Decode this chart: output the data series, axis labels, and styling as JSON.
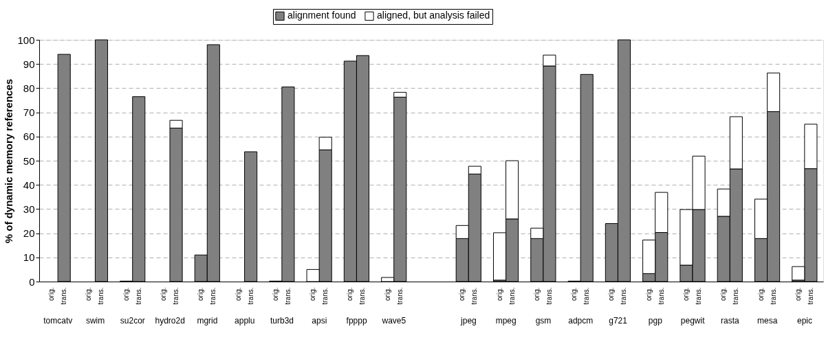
{
  "chart_data": {
    "type": "bar",
    "stacked": true,
    "ylabel": "% of dynamic memory references",
    "categories": [
      "orig.",
      "trans.",
      null,
      "orig.",
      "trans.",
      null,
      "orig.",
      "trans.",
      null,
      "orig.",
      "trans.",
      null,
      "orig.",
      "trans.",
      null,
      "orig.",
      "trans.",
      null,
      "orig.",
      "trans.",
      null,
      "orig.",
      "trans.",
      null,
      "orig.",
      "trans.",
      null,
      "orig.",
      "trans.",
      null,
      null,
      null,
      null,
      "orig.",
      "trans.",
      null,
      "orig.",
      "trans.",
      null,
      "orig.",
      "trans.",
      null,
      "orig.",
      "trans.",
      null,
      "orig.",
      "trans.",
      null,
      "orig.",
      "trans.",
      null,
      "orig.",
      "trans.",
      null,
      "orig.",
      "trans.",
      null,
      "orig.",
      "trans.",
      null,
      "orig.",
      "trans."
    ],
    "series": [
      {
        "name": "alignment found",
        "color": "#808080",
        "values": [
          0,
          94,
          null,
          0,
          100,
          null,
          0.2,
          76.5,
          null,
          0,
          63.5,
          null,
          11,
          98,
          null,
          0,
          53.7,
          null,
          0.2,
          80.5,
          null,
          0,
          54.5,
          null,
          91.2,
          93.5,
          null,
          0,
          76.3,
          null,
          null,
          null,
          null,
          17.8,
          44.5,
          null,
          0.6,
          25.9,
          null,
          17.8,
          89.2,
          null,
          0.2,
          85.7,
          null,
          24,
          100,
          null,
          3.3,
          20.3,
          null,
          6.8,
          29.8,
          null,
          27,
          46.6,
          null,
          17.8,
          70.3,
          null,
          0.6,
          46.7
        ]
      },
      {
        "name": "aligned, but analysis failed",
        "color": "#ffffff",
        "values": [
          0,
          0,
          null,
          0,
          0,
          null,
          0,
          0,
          null,
          0,
          3.2,
          null,
          0,
          0,
          null,
          0,
          0,
          null,
          0,
          0,
          null,
          5,
          5.2,
          null,
          0,
          0,
          null,
          1.7,
          2,
          null,
          null,
          null,
          null,
          5.4,
          3.2,
          null,
          19.6,
          24.1,
          null,
          4.3,
          4.5,
          null,
          0,
          0,
          null,
          0,
          0,
          null,
          13.9,
          16.6,
          null,
          23,
          22.1,
          null,
          11.3,
          21.6,
          null,
          16.3,
          16,
          null,
          5.6,
          18.4
        ]
      }
    ],
    "annotations": [
      "tomcatv",
      "swim",
      "su2cor",
      "hydro2d",
      "mgrid",
      "applu",
      "turb3d",
      "apsi",
      "fpppp",
      "wave5",
      "jpeg",
      "mpeg",
      "gsm",
      "adpcm",
      "g721",
      "pgp",
      "pegwit",
      "rasta",
      "mesa",
      "epic"
    ],
    "ylim": [
      0,
      100
    ],
    "yticks": [
      0,
      10,
      20,
      30,
      40,
      50,
      60,
      70,
      80,
      90,
      100
    ],
    "grid": "y",
    "legend": "top"
  }
}
